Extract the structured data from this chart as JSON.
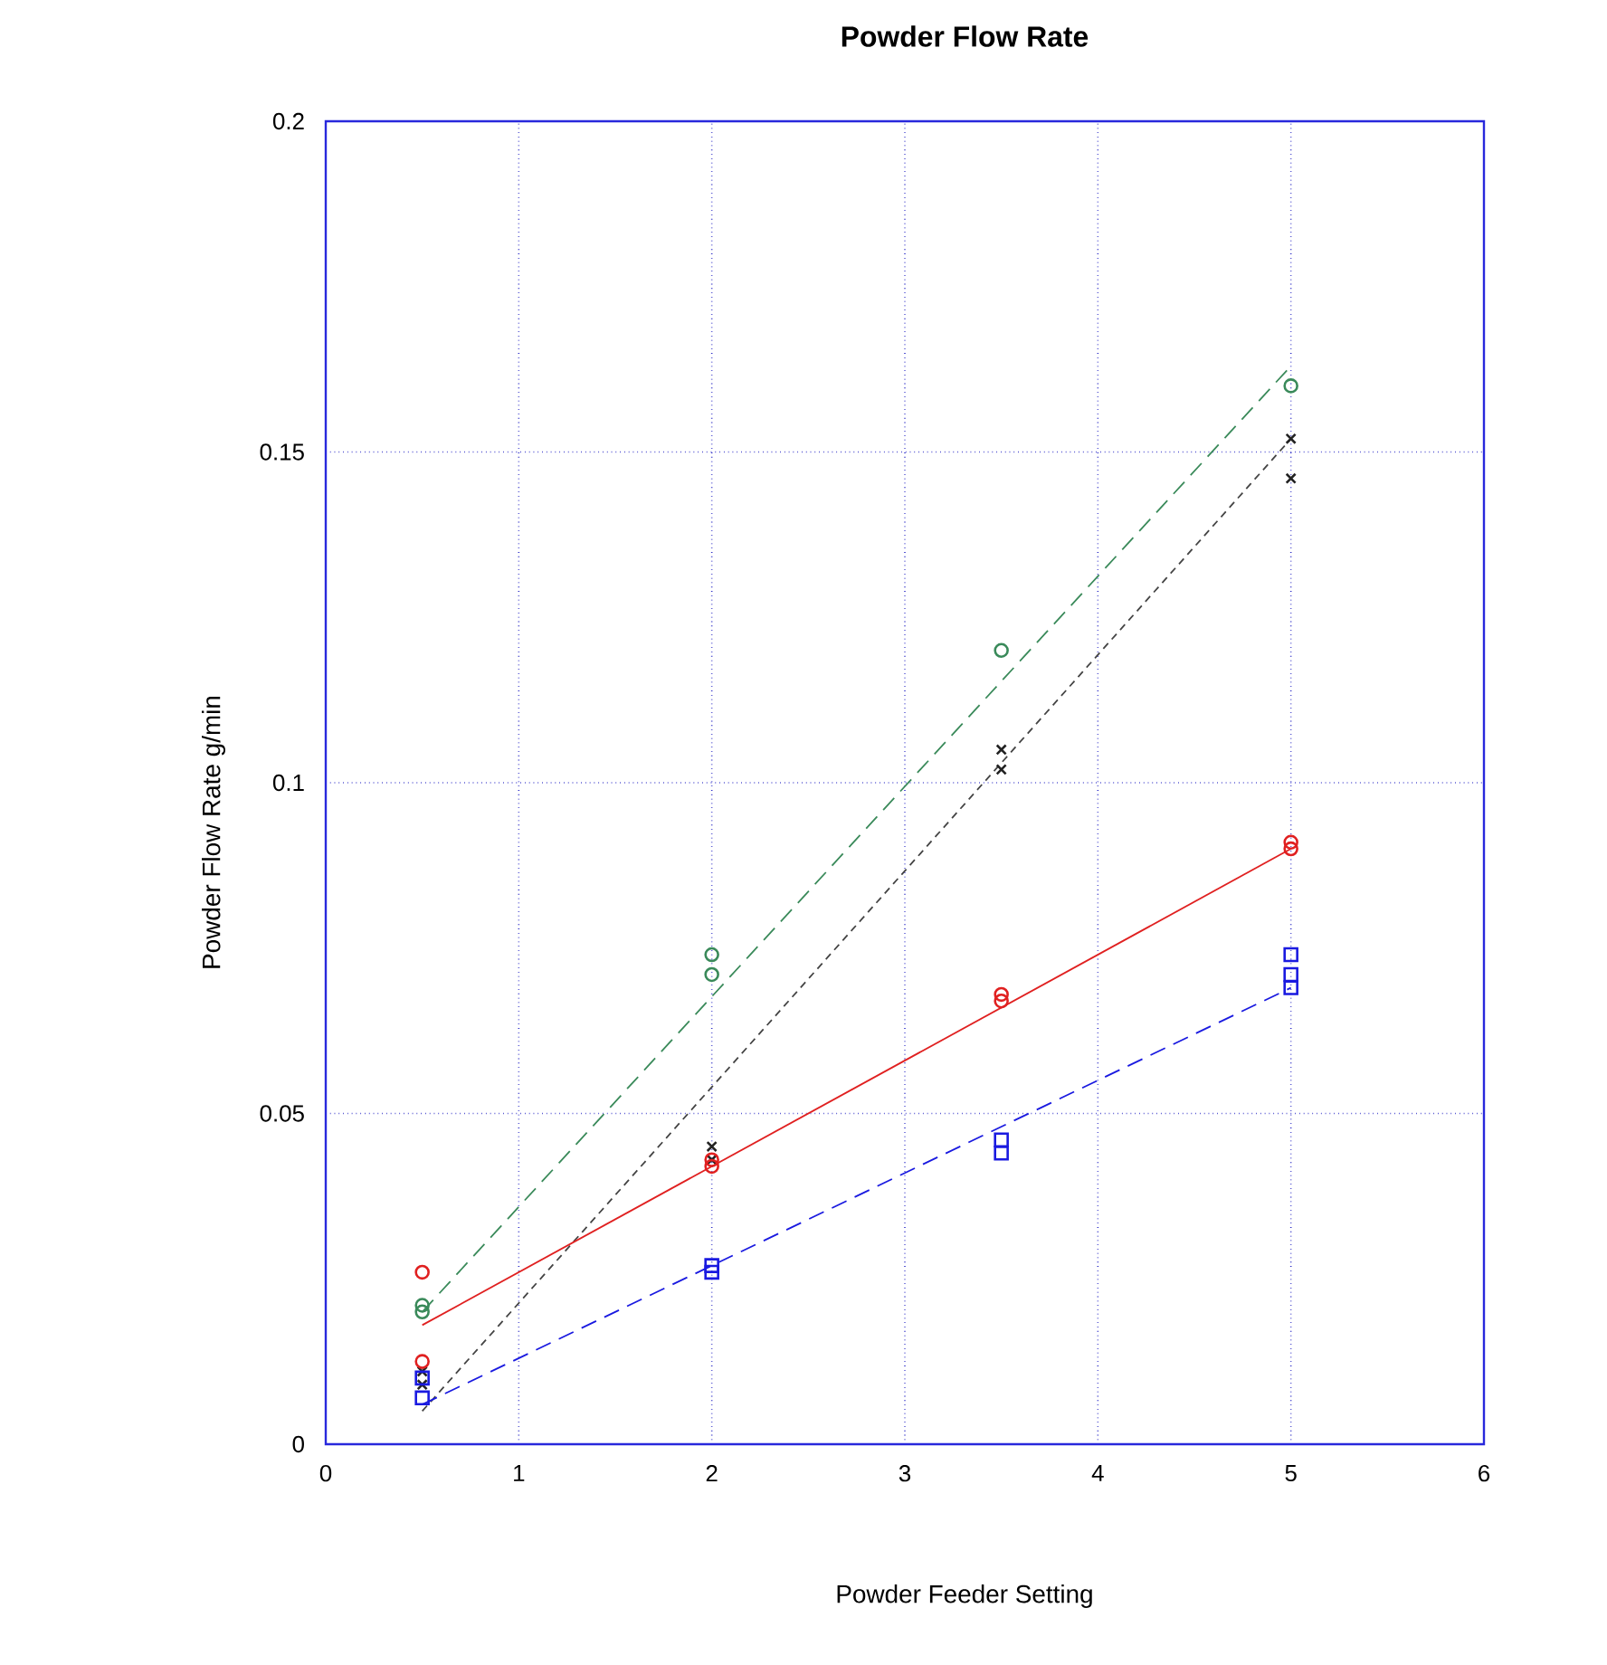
{
  "chart_data": {
    "type": "scatter",
    "title": "Powder Flow Rate",
    "xlabel": "Powder Feeder Setting",
    "ylabel": "Powder Flow Rate g/min",
    "xlim": [
      0,
      6
    ],
    "ylim": [
      0,
      0.2
    ],
    "xticks": [
      0,
      1,
      2,
      3,
      4,
      5,
      6
    ],
    "yticks": [
      0,
      0.05,
      0.1,
      0.15,
      0.2
    ],
    "grid": true,
    "series": [
      {
        "color": "#3a8a5a",
        "marker": "circle",
        "x": [
          0.5,
          0.5,
          2,
          2,
          3.5,
          5
        ],
        "values": [
          0.021,
          0.02,
          0.074,
          0.071,
          0.12,
          0.16
        ]
      },
      {
        "color": "#222222",
        "marker": "cross",
        "x": [
          0.5,
          0.5,
          2,
          2,
          3.5,
          3.5,
          5,
          5
        ],
        "values": [
          0.011,
          0.009,
          0.045,
          0.043,
          0.105,
          0.102,
          0.152,
          0.146
        ]
      },
      {
        "color": "#e02020",
        "marker": "circle",
        "x": [
          0.5,
          0.5,
          2,
          2,
          3.5,
          3.5,
          5,
          5
        ],
        "values": [
          0.026,
          0.0125,
          0.043,
          0.042,
          0.068,
          0.067,
          0.091,
          0.09
        ]
      },
      {
        "color": "#1a1ae0",
        "marker": "square",
        "x": [
          0.5,
          0.5,
          2,
          2,
          3.5,
          3.5,
          5,
          5,
          5
        ],
        "values": [
          0.01,
          0.007,
          0.027,
          0.026,
          0.046,
          0.044,
          0.074,
          0.071,
          0.069
        ]
      },
      {
        "type": "line",
        "color": "#3a8a5a",
        "line_style": "dashed",
        "marker": "none",
        "x": [
          0.5,
          5
        ],
        "values": [
          0.02,
          0.163
        ]
      },
      {
        "type": "line",
        "color": "#444444",
        "line_style": "dotted",
        "marker": "none",
        "x": [
          0.5,
          5
        ],
        "values": [
          0.005,
          0.152
        ]
      },
      {
        "type": "line",
        "color": "#e02020",
        "line_style": "solid",
        "marker": "none",
        "x": [
          0.5,
          5
        ],
        "values": [
          0.018,
          0.09
        ]
      },
      {
        "type": "line",
        "color": "#1a1ae0",
        "line_style": "dashed",
        "marker": "none",
        "x": [
          0.5,
          5
        ],
        "values": [
          0.006,
          0.069
        ]
      }
    ]
  }
}
